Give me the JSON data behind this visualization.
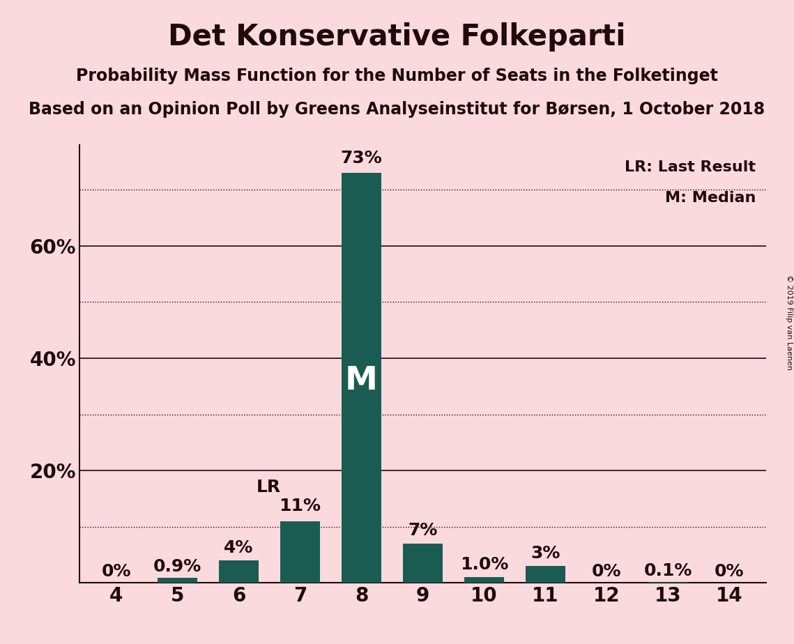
{
  "title": "Det Konservative Folkeparti",
  "subtitle1": "Probability Mass Function for the Number of Seats in the Folketinget",
  "subtitle2": "Based on an Opinion Poll by Greens Analyseinstitut for Børsen, 1 October 2018",
  "copyright": "© 2019 Filip van Laenen",
  "categories": [
    4,
    5,
    6,
    7,
    8,
    9,
    10,
    11,
    12,
    13,
    14
  ],
  "values": [
    0.0,
    0.9,
    4.0,
    11.0,
    73.0,
    7.0,
    1.0,
    3.0,
    0.0,
    0.1,
    0.0
  ],
  "bar_color": "#1a5c52",
  "background_color": "#fadadd",
  "label_color": "#200a0a",
  "dotted_gridlines": [
    10,
    30,
    50,
    70
  ],
  "solid_gridlines": [
    20,
    40,
    60
  ],
  "lr_bar_index": 3,
  "median_bar_index": 4,
  "legend_lr": "LR: Last Result",
  "legend_m": "M: Median",
  "value_labels": [
    "0%",
    "0.9%",
    "4%",
    "11%",
    "73%",
    "7%",
    "1.0%",
    "3%",
    "0%",
    "0.1%",
    "0%"
  ],
  "ylim": [
    0,
    78
  ],
  "title_fontsize": 30,
  "subtitle_fontsize": 17,
  "bar_label_fontsize": 18,
  "axis_label_fontsize": 20,
  "legend_fontsize": 16,
  "m_label_fontsize": 34
}
